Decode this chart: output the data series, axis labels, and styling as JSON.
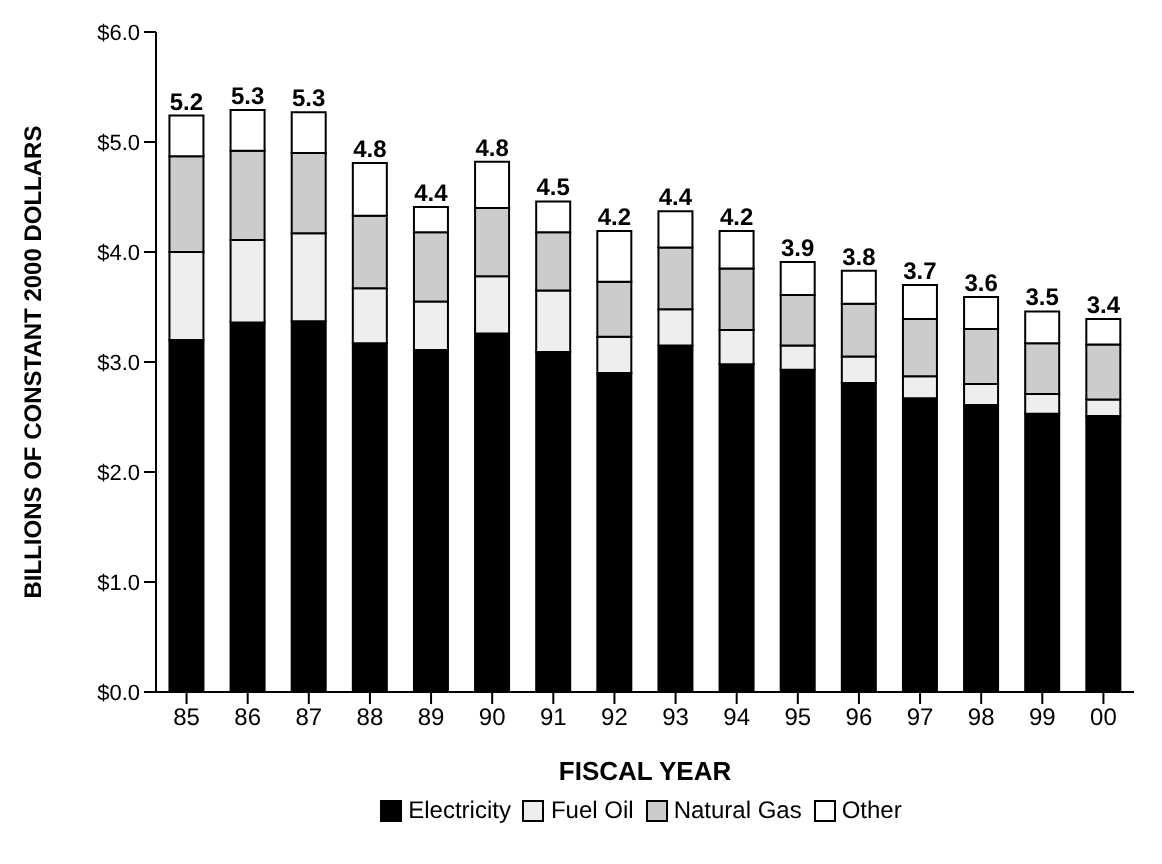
{
  "chart_data": {
    "type": "bar",
    "stacked": true,
    "xlabel": "FISCAL YEAR",
    "ylabel": "BILLIONS OF CONSTANT 2000 DOLLARS",
    "categories": [
      "85",
      "86",
      "87",
      "88",
      "89",
      "90",
      "91",
      "92",
      "93",
      "94",
      "95",
      "96",
      "97",
      "98",
      "99",
      "00"
    ],
    "series": [
      {
        "name": "Electricity",
        "color": "#000000",
        "values": [
          3.2,
          3.36,
          3.37,
          3.17,
          3.11,
          3.26,
          3.09,
          2.9,
          3.15,
          2.98,
          2.93,
          2.81,
          2.67,
          2.61,
          2.53,
          2.51
        ]
      },
      {
        "name": "Fuel Oil",
        "color": "#eeeeee",
        "values": [
          0.8,
          0.75,
          0.8,
          0.5,
          0.44,
          0.52,
          0.56,
          0.33,
          0.33,
          0.31,
          0.22,
          0.24,
          0.2,
          0.19,
          0.18,
          0.15
        ]
      },
      {
        "name": "Natural Gas",
        "color": "#cccccc",
        "values": [
          0.87,
          0.81,
          0.73,
          0.66,
          0.63,
          0.62,
          0.53,
          0.5,
          0.56,
          0.56,
          0.46,
          0.48,
          0.52,
          0.5,
          0.46,
          0.5
        ]
      },
      {
        "name": "Other",
        "color": "#ffffff",
        "values": [
          0.37,
          0.37,
          0.37,
          0.48,
          0.23,
          0.42,
          0.28,
          0.46,
          0.33,
          0.34,
          0.3,
          0.3,
          0.31,
          0.29,
          0.29,
          0.23
        ]
      }
    ],
    "totals": [
      "5.2",
      "5.3",
      "5.3",
      "4.8",
      "4.4",
      "4.8",
      "4.5",
      "4.2",
      "4.4",
      "4.2",
      "3.9",
      "3.8",
      "3.7",
      "3.6",
      "3.5",
      "3.4"
    ],
    "ylim": [
      0,
      6
    ],
    "yticks": [
      {
        "value": 0,
        "label": "$0.0"
      },
      {
        "value": 1,
        "label": "$1.0"
      },
      {
        "value": 2,
        "label": "$2.0"
      },
      {
        "value": 3,
        "label": "$3.0"
      },
      {
        "value": 4,
        "label": "$4.0"
      },
      {
        "value": 5,
        "label": "$5.0"
      },
      {
        "value": 6,
        "label": "$6.0"
      }
    ],
    "grid": false,
    "legend": "bottom"
  }
}
